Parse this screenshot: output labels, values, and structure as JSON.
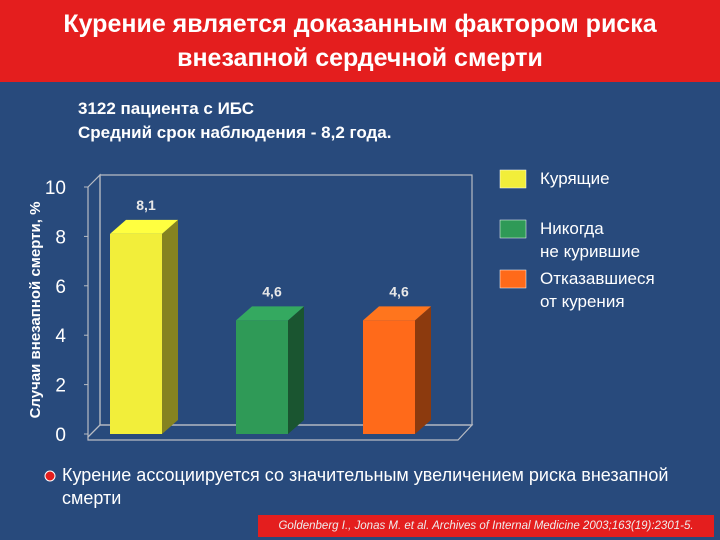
{
  "chart_data": {
    "type": "bar",
    "title": [
      "Курение является доказанным фактором риска",
      "внезапной сердечной смерти"
    ],
    "subtitle": [
      "3122 пациента с ИБС",
      "Средний срок наблюдения - 8,2 года."
    ],
    "y_label": "Случаи внезапной смерти, %",
    "categories": [
      null
    ],
    "series": [
      {
        "name": "Курящие",
        "color": "#f2ee3a",
        "values": [
          8.1
        ],
        "value_labels": [
          "8,1"
        ]
      },
      {
        "name": "Никогда не курившие",
        "color": "#2f9a57",
        "values": [
          4.6
        ],
        "value_labels": [
          "4,6"
        ]
      },
      {
        "name": "Отказавшиеся от курения",
        "color": "#ff6a1a",
        "values": [
          4.6
        ],
        "value_labels": [
          "4,6"
        ]
      }
    ],
    "ylim": [
      0,
      10
    ],
    "yticks": [
      0,
      2,
      4,
      6,
      8,
      10
    ],
    "note": "Курение ассоциируется со значительным увеличением риска внезапной смерти",
    "source": "Goldenberg I., Jonas M. et al. Archives of Internal Medicine 2003;163(19):2301-5."
  }
}
